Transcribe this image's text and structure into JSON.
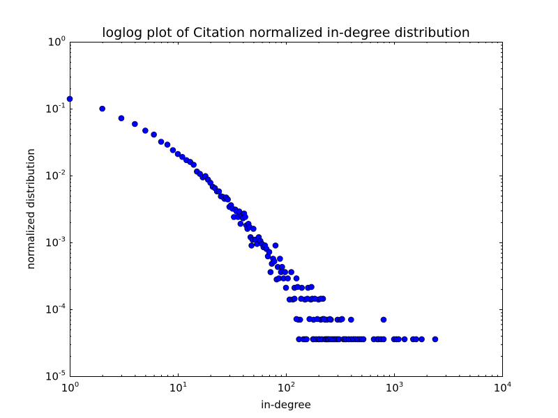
{
  "chart_data": {
    "type": "scatter",
    "title": "loglog plot of Citation normalized in-degree distribution",
    "xlabel": "in-degree",
    "ylabel": "normalized distribution",
    "xscale": "log",
    "yscale": "log",
    "xlim": [
      1,
      10000
    ],
    "ylim": [
      1e-05,
      1
    ],
    "grid": false,
    "marker_color": "#0000ff",
    "x_ticks": [
      {
        "base": "10",
        "exp": "0"
      },
      {
        "base": "10",
        "exp": "1"
      },
      {
        "base": "10",
        "exp": "2"
      },
      {
        "base": "10",
        "exp": "3"
      },
      {
        "base": "10",
        "exp": "4"
      }
    ],
    "y_ticks": [
      {
        "base": "10",
        "exp": "-5"
      },
      {
        "base": "10",
        "exp": "-4"
      },
      {
        "base": "10",
        "exp": "-3"
      },
      {
        "base": "10",
        "exp": "-2"
      },
      {
        "base": "10",
        "exp": "-1"
      },
      {
        "base": "10",
        "exp": "0"
      }
    ],
    "points": [
      [
        1,
        0.14
      ],
      [
        2,
        0.1
      ],
      [
        3,
        0.072
      ],
      [
        4,
        0.059
      ],
      [
        5,
        0.047
      ],
      [
        6,
        0.041
      ],
      [
        7,
        0.032
      ],
      [
        8,
        0.029
      ],
      [
        9,
        0.024
      ],
      [
        10,
        0.021
      ],
      [
        11,
        0.019
      ],
      [
        12,
        0.017
      ],
      [
        13,
        0.016
      ],
      [
        14,
        0.0145
      ],
      [
        15,
        0.0115
      ],
      [
        16,
        0.0106
      ],
      [
        17,
        0.0094
      ],
      [
        18,
        0.0098
      ],
      [
        19,
        0.0087
      ],
      [
        20,
        0.0078
      ],
      [
        21,
        0.0068
      ],
      [
        22,
        0.0065
      ],
      [
        23,
        0.0058
      ],
      [
        24,
        0.0058
      ],
      [
        25,
        0.0049
      ],
      [
        26,
        0.0048
      ],
      [
        27,
        0.0045
      ],
      [
        28,
        0.0047
      ],
      [
        29,
        0.0044
      ],
      [
        30,
        0.0034
      ],
      [
        31,
        0.0036
      ],
      [
        32,
        0.0032
      ],
      [
        33,
        0.0024
      ],
      [
        34,
        0.0031
      ],
      [
        35,
        0.0029
      ],
      [
        36,
        0.0024
      ],
      [
        37,
        0.0029
      ],
      [
        38,
        0.0019
      ],
      [
        39,
        0.0025
      ],
      [
        40,
        0.0023
      ],
      [
        41,
        0.0027
      ],
      [
        42,
        0.0024
      ],
      [
        43,
        0.0018
      ],
      [
        44,
        0.0016
      ],
      [
        45,
        0.0019
      ],
      [
        46,
        0.0017
      ],
      [
        47,
        0.0012
      ],
      [
        48,
        0.0009
      ],
      [
        49,
        0.0011
      ],
      [
        50,
        0.0016
      ],
      [
        52,
        0.0011
      ],
      [
        54,
        0.00095
      ],
      [
        56,
        0.0012
      ],
      [
        58,
        0.00105
      ],
      [
        60,
        0.00095
      ],
      [
        62,
        0.00085
      ],
      [
        64,
        0.0009
      ],
      [
        66,
        0.0008
      ],
      [
        68,
        0.00062
      ],
      [
        70,
        0.00072
      ],
      [
        72,
        0.00036
      ],
      [
        74,
        0.00048
      ],
      [
        76,
        0.00057
      ],
      [
        78,
        0.00052
      ],
      [
        80,
        0.0009
      ],
      [
        82,
        0.00028
      ],
      [
        84,
        0.00043
      ],
      [
        86,
        0.00029
      ],
      [
        88,
        0.00057
      ],
      [
        90,
        0.00036
      ],
      [
        92,
        0.00043
      ],
      [
        95,
        0.00029
      ],
      [
        98,
        0.00036
      ],
      [
        100,
        0.00021
      ],
      [
        104,
        0.00029
      ],
      [
        108,
        0.00014
      ],
      [
        112,
        0.00036
      ],
      [
        116,
        0.00014
      ],
      [
        120,
        0.00021
      ],
      [
        125,
        0.00029
      ],
      [
        130,
        7e-05
      ],
      [
        135,
        7e-05
      ],
      [
        140,
        0.00021
      ],
      [
        150,
        0.00014
      ],
      [
        160,
        0.00021
      ],
      [
        170,
        0.00014
      ],
      [
        180,
        7e-05
      ],
      [
        200,
        0.00014
      ],
      [
        210,
        7e-05
      ],
      [
        220,
        0.000144
      ],
      [
        230,
        7e-05
      ],
      [
        240,
        7e-05
      ],
      [
        260,
        7e-05
      ],
      [
        300,
        7e-05
      ],
      [
        320,
        7e-05
      ],
      [
        400,
        7e-05
      ],
      [
        800,
        7e-05
      ],
      [
        120,
        0.000144
      ],
      [
        125,
        7.15e-05
      ],
      [
        128,
        0.000216
      ],
      [
        132,
        3.57e-05
      ],
      [
        138,
        0.000144
      ],
      [
        145,
        3.57e-05
      ],
      [
        150,
        3.57e-05
      ],
      [
        155,
        3.57e-05
      ],
      [
        158,
        0.000144
      ],
      [
        165,
        7.15e-05
      ],
      [
        172,
        0.000216
      ],
      [
        175,
        0.000144
      ],
      [
        178,
        3.57e-05
      ],
      [
        180,
        3.57e-05
      ],
      [
        185,
        0.000144
      ],
      [
        190,
        3.57e-05
      ],
      [
        195,
        7.15e-05
      ],
      [
        200,
        3.57e-05
      ],
      [
        205,
        3.57e-05
      ],
      [
        210,
        0.000144
      ],
      [
        215,
        3.57e-05
      ],
      [
        220,
        7.15e-05
      ],
      [
        225,
        7.15e-05
      ],
      [
        230,
        3.57e-05
      ],
      [
        235,
        3.57e-05
      ],
      [
        240,
        3.57e-05
      ],
      [
        245,
        3.57e-05
      ],
      [
        250,
        3.57e-05
      ],
      [
        255,
        7.15e-05
      ],
      [
        260,
        3.57e-05
      ],
      [
        270,
        3.57e-05
      ],
      [
        280,
        3.57e-05
      ],
      [
        290,
        3.57e-05
      ],
      [
        300,
        3.57e-05
      ],
      [
        310,
        3.57e-05
      ],
      [
        330,
        7.15e-05
      ],
      [
        340,
        3.57e-05
      ],
      [
        350,
        3.57e-05
      ],
      [
        360,
        3.57e-05
      ],
      [
        380,
        3.57e-05
      ],
      [
        400,
        3.57e-05
      ],
      [
        420,
        3.57e-05
      ],
      [
        440,
        3.57e-05
      ],
      [
        460,
        3.57e-05
      ],
      [
        480,
        3.57e-05
      ],
      [
        500,
        3.57e-05
      ],
      [
        520,
        3.57e-05
      ],
      [
        650,
        3.57e-05
      ],
      [
        700,
        3.57e-05
      ],
      [
        720,
        3.57e-05
      ],
      [
        760,
        3.57e-05
      ],
      [
        800,
        3.57e-05
      ],
      [
        1000,
        3.57e-05
      ],
      [
        1050,
        3.57e-05
      ],
      [
        1100,
        3.57e-05
      ],
      [
        1250,
        3.57e-05
      ],
      [
        1500,
        3.57e-05
      ],
      [
        1600,
        3.57e-05
      ],
      [
        1800,
        3.57e-05
      ],
      [
        2400,
        3.57e-05
      ]
    ]
  }
}
